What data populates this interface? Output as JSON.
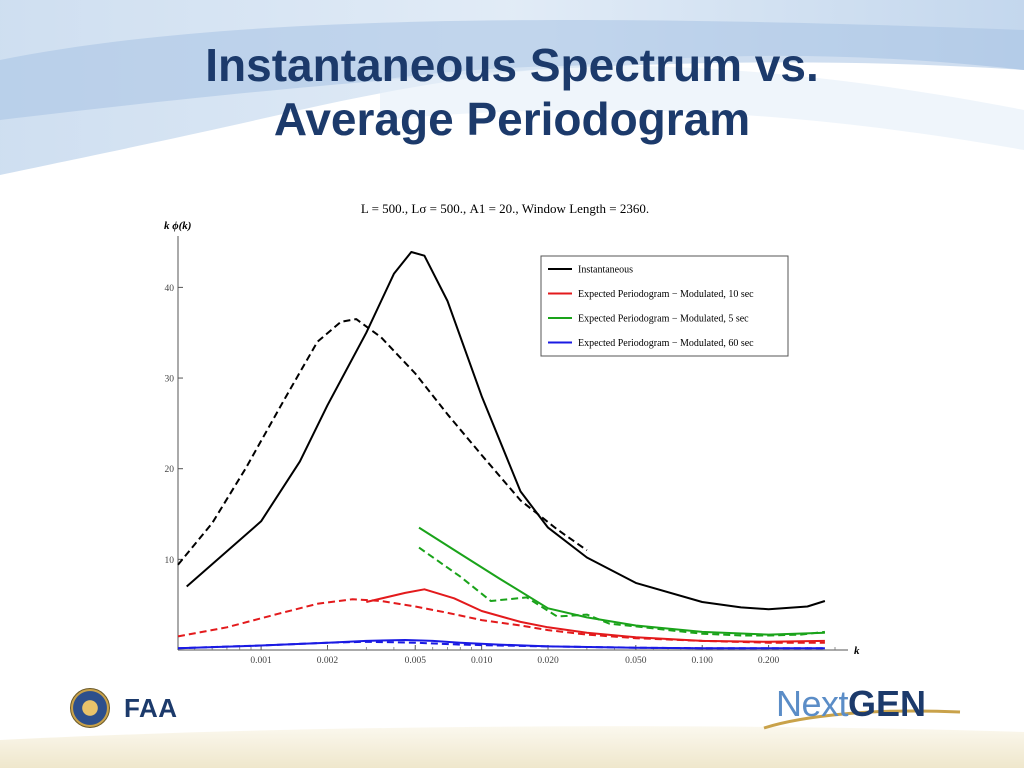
{
  "slide": {
    "title_line1": "Instantaneous Spectrum vs.",
    "title_line2": "Average Periodogram",
    "logo_left_text": "FAA",
    "logo_right_text_a": "Next",
    "logo_right_text_b": "GEN"
  },
  "chart_data": {
    "type": "line",
    "title": "L = 500.,  Lσ = 500.,  A1 = 20.,  Window Length = 2360.",
    "xlabel": "k",
    "ylabel": "k ϕ(k)",
    "x_scale": "log",
    "xlim": [
      0.00042,
      0.4
    ],
    "ylim": [
      0,
      46
    ],
    "x_ticks": [
      0.001,
      0.002,
      0.005,
      0.01,
      0.02,
      0.05,
      0.1,
      0.2
    ],
    "x_tick_labels": [
      "0.001",
      "0.002",
      "0.005",
      "0.010",
      "0.020",
      "0.050",
      "0.100",
      "0.200"
    ],
    "y_ticks": [
      10,
      20,
      30,
      40
    ],
    "y_tick_labels": [
      "10",
      "20",
      "30",
      "40"
    ],
    "grid": false,
    "legend_position": "top-right",
    "legend": [
      {
        "label": "Instantaneous",
        "color": "#000000"
      },
      {
        "label": "Expected Periodogram − Modulated, 10 sec",
        "color": "#e31a1c"
      },
      {
        "label": "Expected Periodogram − Modulated, 5 sec",
        "color": "#1aa31a"
      },
      {
        "label": "Expected Periodogram − Modulated, 60 sec",
        "color": "#1a1ae3"
      }
    ],
    "series": [
      {
        "color": "#000000",
        "dash": "solid",
        "points": [
          [
            0.00046,
            7
          ],
          [
            0.001,
            14.2
          ],
          [
            0.0015,
            20.8
          ],
          [
            0.002,
            27
          ],
          [
            0.003,
            35
          ],
          [
            0.004,
            41.5
          ],
          [
            0.0048,
            43.9
          ],
          [
            0.0055,
            43.5
          ],
          [
            0.007,
            38.5
          ],
          [
            0.01,
            28
          ],
          [
            0.015,
            17.5
          ],
          [
            0.02,
            13.5
          ],
          [
            0.03,
            10.2
          ],
          [
            0.05,
            7.4
          ],
          [
            0.1,
            5.3
          ],
          [
            0.15,
            4.7
          ],
          [
            0.2,
            4.5
          ],
          [
            0.3,
            4.8
          ],
          [
            0.36,
            5.4
          ]
        ]
      },
      {
        "color": "#000000",
        "dash": "dashed",
        "points": [
          [
            0.00042,
            9.4
          ],
          [
            0.0006,
            14
          ],
          [
            0.00085,
            20
          ],
          [
            0.0013,
            28
          ],
          [
            0.0018,
            34
          ],
          [
            0.0023,
            36.2
          ],
          [
            0.0027,
            36.5
          ],
          [
            0.0035,
            34.5
          ],
          [
            0.005,
            30.5
          ],
          [
            0.007,
            26
          ],
          [
            0.01,
            21.5
          ],
          [
            0.015,
            16.5
          ],
          [
            0.022,
            13.3
          ],
          [
            0.03,
            11
          ]
        ]
      },
      {
        "color": "#e31a1c",
        "dash": "solid",
        "points": [
          [
            0.003,
            5.3
          ],
          [
            0.0045,
            6.3
          ],
          [
            0.0055,
            6.7
          ],
          [
            0.0075,
            5.7
          ],
          [
            0.01,
            4.3
          ],
          [
            0.015,
            3.1
          ],
          [
            0.02,
            2.5
          ],
          [
            0.03,
            1.9
          ],
          [
            0.05,
            1.4
          ],
          [
            0.1,
            1
          ],
          [
            0.2,
            0.9
          ],
          [
            0.36,
            1
          ]
        ]
      },
      {
        "color": "#e31a1c",
        "dash": "dashed",
        "points": [
          [
            0.00042,
            1.5
          ],
          [
            0.0007,
            2.5
          ],
          [
            0.0012,
            4
          ],
          [
            0.0018,
            5.1
          ],
          [
            0.0026,
            5.6
          ],
          [
            0.0035,
            5.4
          ],
          [
            0.005,
            4.8
          ],
          [
            0.007,
            4.1
          ],
          [
            0.01,
            3.3
          ],
          [
            0.015,
            2.7
          ],
          [
            0.02,
            2.2
          ],
          [
            0.03,
            1.7
          ],
          [
            0.05,
            1.3
          ],
          [
            0.1,
            1
          ],
          [
            0.2,
            0.8
          ],
          [
            0.36,
            0.8
          ]
        ]
      },
      {
        "color": "#1aa31a",
        "dash": "solid",
        "points": [
          [
            0.0052,
            13.5
          ],
          [
            0.008,
            10.6
          ],
          [
            0.012,
            7.9
          ],
          [
            0.02,
            4.6
          ],
          [
            0.03,
            3.6
          ],
          [
            0.05,
            2.7
          ],
          [
            0.1,
            2
          ],
          [
            0.2,
            1.7
          ],
          [
            0.36,
            1.9
          ]
        ]
      },
      {
        "color": "#1aa31a",
        "dash": "dashed",
        "points": [
          [
            0.0052,
            11.3
          ],
          [
            0.008,
            8.1
          ],
          [
            0.011,
            5.4
          ],
          [
            0.016,
            5.8
          ],
          [
            0.022,
            3.7
          ],
          [
            0.03,
            3.9
          ],
          [
            0.038,
            2.9
          ],
          [
            0.05,
            2.6
          ],
          [
            0.07,
            2.2
          ],
          [
            0.1,
            1.8
          ],
          [
            0.15,
            1.6
          ],
          [
            0.2,
            1.6
          ],
          [
            0.28,
            1.7
          ],
          [
            0.36,
            2
          ]
        ]
      },
      {
        "color": "#1a1ae3",
        "dash": "solid",
        "points": [
          [
            0.00042,
            0.2
          ],
          [
            0.001,
            0.5
          ],
          [
            0.002,
            0.8
          ],
          [
            0.003,
            1
          ],
          [
            0.0045,
            1.1
          ],
          [
            0.006,
            1
          ],
          [
            0.008,
            0.8
          ],
          [
            0.012,
            0.6
          ],
          [
            0.02,
            0.4
          ],
          [
            0.05,
            0.25
          ],
          [
            0.1,
            0.2
          ],
          [
            0.36,
            0.2
          ]
        ]
      },
      {
        "color": "#1a1ae3",
        "dash": "dashed",
        "points": [
          [
            0.00042,
            0.2
          ],
          [
            0.001,
            0.5
          ],
          [
            0.002,
            0.8
          ],
          [
            0.003,
            0.9
          ],
          [
            0.005,
            0.8
          ],
          [
            0.008,
            0.6
          ],
          [
            0.012,
            0.5
          ],
          [
            0.02,
            0.4
          ],
          [
            0.05,
            0.25
          ],
          [
            0.1,
            0.2
          ],
          [
            0.36,
            0.2
          ]
        ]
      }
    ]
  }
}
